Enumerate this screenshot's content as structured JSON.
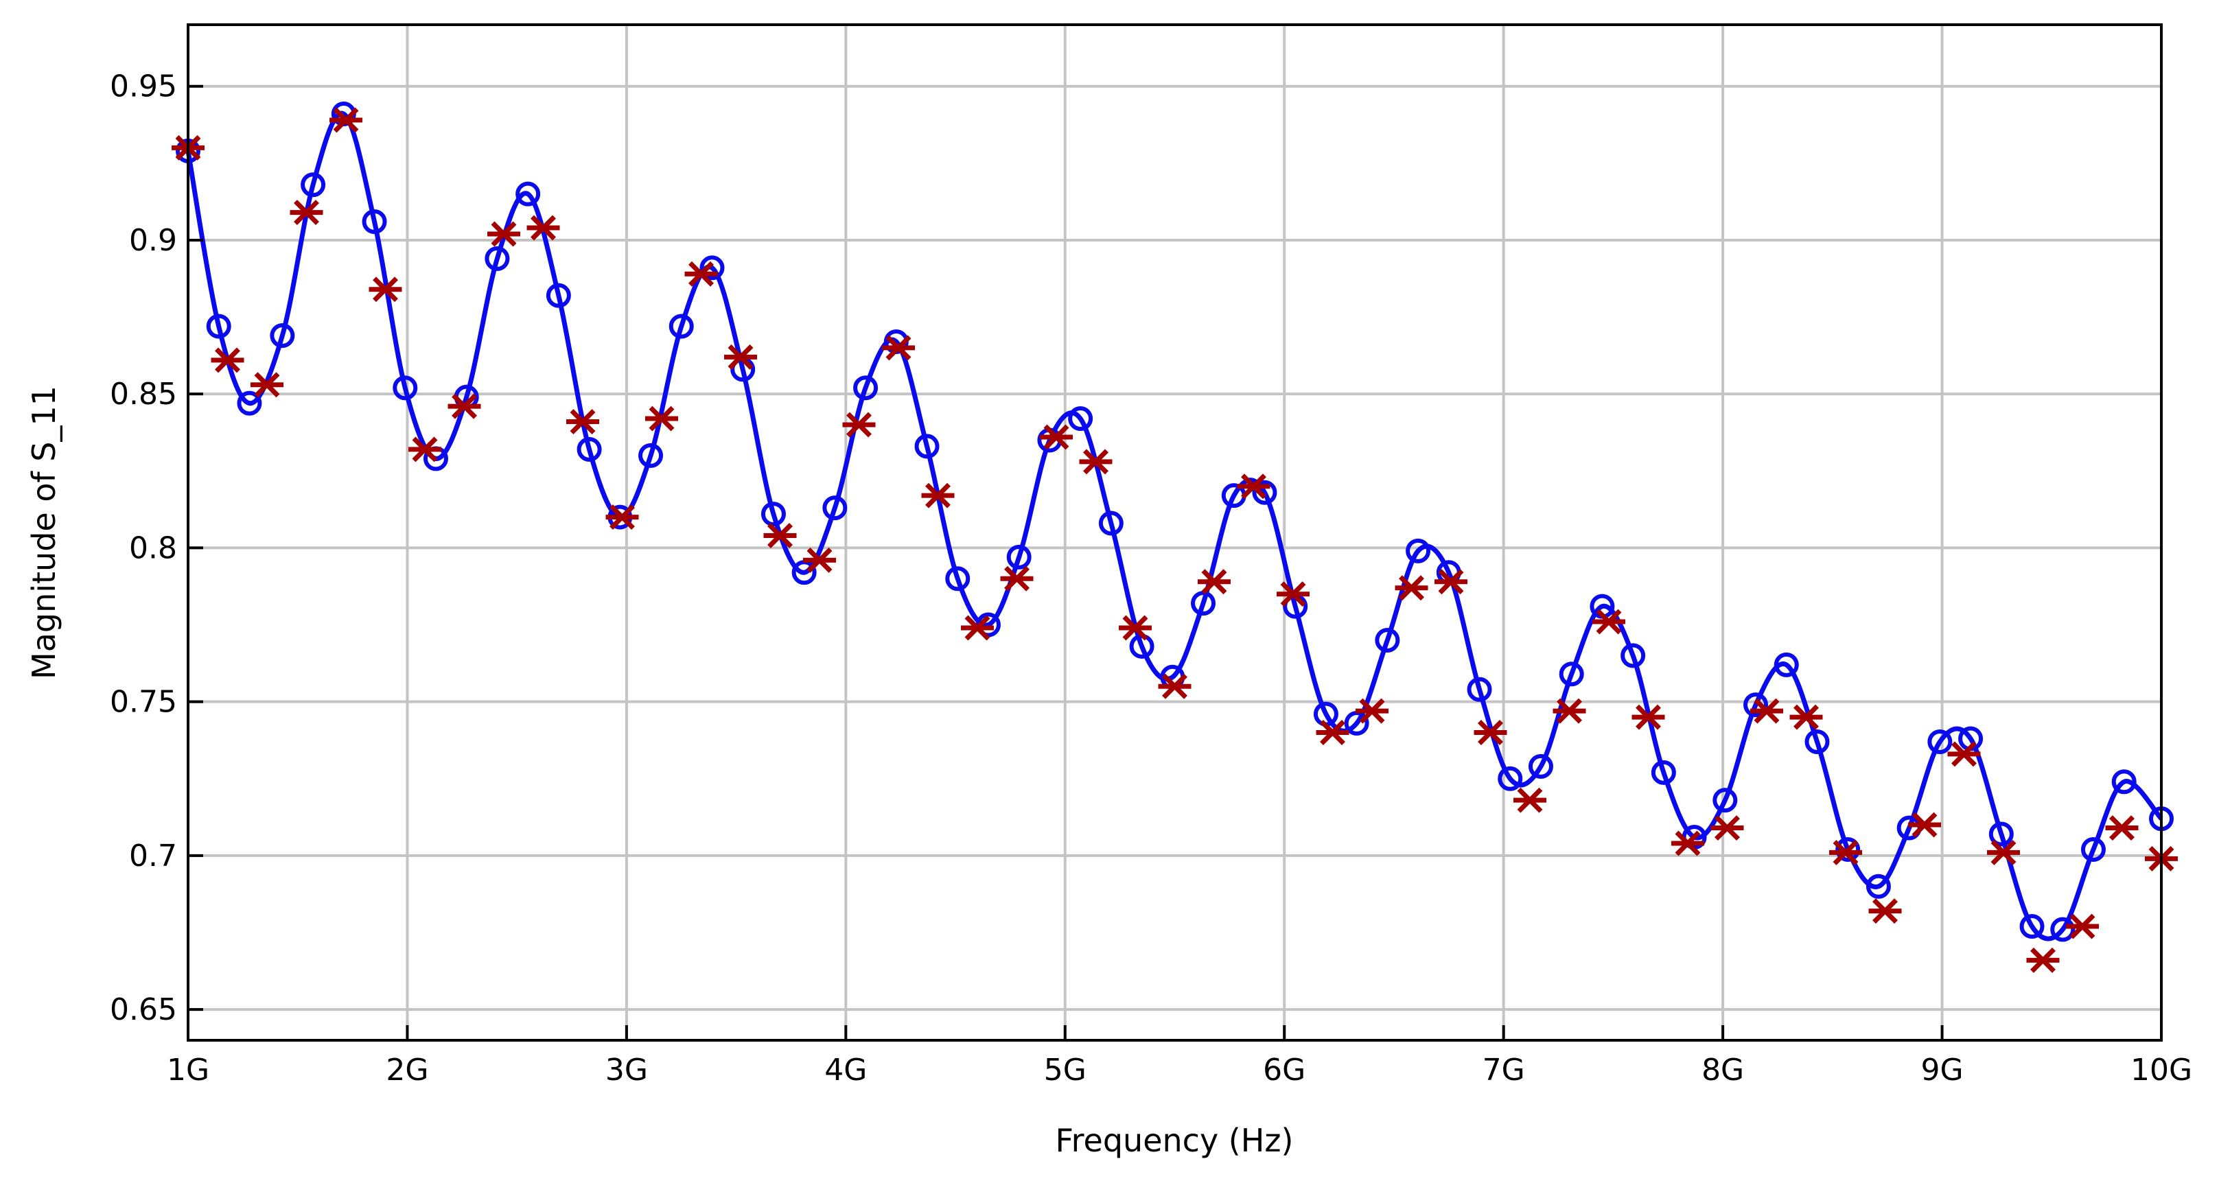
{
  "chart_data": {
    "type": "line",
    "title": "",
    "xlabel": "Frequency (Hz)",
    "ylabel": "Magnitude of S_11",
    "xlim": [
      1,
      10
    ],
    "ylim": [
      0.64,
      0.97
    ],
    "x_unit": "GHz",
    "x_ticks": [
      1,
      2,
      3,
      4,
      5,
      6,
      7,
      8,
      9,
      10
    ],
    "x_tick_labels": [
      "1G",
      "2G",
      "3G",
      "4G",
      "5G",
      "6G",
      "7G",
      "8G",
      "9G",
      "10G"
    ],
    "y_ticks": [
      0.65,
      0.7,
      0.75,
      0.8,
      0.85,
      0.9,
      0.95
    ],
    "y_tick_labels": [
      "0.65",
      "0.7",
      "0.75",
      "0.8",
      "0.85",
      "0.9",
      "0.95"
    ],
    "grid": true,
    "legend": "none",
    "series": [
      {
        "marker": "circle",
        "line": "solid",
        "color": "#0a0aee",
        "points": [
          [
            1.0,
            0.929
          ],
          [
            1.14,
            0.872
          ],
          [
            1.28,
            0.847
          ],
          [
            1.43,
            0.869
          ],
          [
            1.57,
            0.918
          ],
          [
            1.71,
            0.941
          ],
          [
            1.85,
            0.906
          ],
          [
            1.99,
            0.852
          ],
          [
            2.13,
            0.829
          ],
          [
            2.27,
            0.849
          ],
          [
            2.41,
            0.894
          ],
          [
            2.55,
            0.915
          ],
          [
            2.69,
            0.882
          ],
          [
            2.83,
            0.832
          ],
          [
            2.97,
            0.81
          ],
          [
            3.11,
            0.83
          ],
          [
            3.25,
            0.872
          ],
          [
            3.39,
            0.891
          ],
          [
            3.53,
            0.858
          ],
          [
            3.67,
            0.811
          ],
          [
            3.81,
            0.792
          ],
          [
            3.95,
            0.813
          ],
          [
            4.09,
            0.852
          ],
          [
            4.23,
            0.867
          ],
          [
            4.37,
            0.833
          ],
          [
            4.51,
            0.79
          ],
          [
            4.65,
            0.775
          ],
          [
            4.79,
            0.797
          ],
          [
            4.93,
            0.835
          ],
          [
            5.07,
            0.842
          ],
          [
            5.21,
            0.808
          ],
          [
            5.35,
            0.768
          ],
          [
            5.49,
            0.758
          ],
          [
            5.63,
            0.782
          ],
          [
            5.77,
            0.817
          ],
          [
            5.91,
            0.818
          ],
          [
            6.05,
            0.781
          ],
          [
            6.19,
            0.746
          ],
          [
            6.33,
            0.743
          ],
          [
            6.47,
            0.77
          ],
          [
            6.61,
            0.799
          ],
          [
            6.75,
            0.792
          ],
          [
            6.89,
            0.754
          ],
          [
            7.03,
            0.725
          ],
          [
            7.17,
            0.729
          ],
          [
            7.31,
            0.759
          ],
          [
            7.45,
            0.781
          ],
          [
            7.59,
            0.765
          ],
          [
            7.73,
            0.727
          ],
          [
            7.87,
            0.706
          ],
          [
            8.01,
            0.718
          ],
          [
            8.15,
            0.749
          ],
          [
            8.29,
            0.762
          ],
          [
            8.43,
            0.737
          ],
          [
            8.57,
            0.702
          ],
          [
            8.71,
            0.69
          ],
          [
            8.85,
            0.709
          ],
          [
            8.99,
            0.737
          ],
          [
            9.13,
            0.738
          ],
          [
            9.27,
            0.707
          ],
          [
            9.41,
            0.677
          ],
          [
            9.55,
            0.676
          ],
          [
            9.69,
            0.702
          ],
          [
            9.83,
            0.724
          ],
          [
            10.0,
            0.712
          ]
        ]
      },
      {
        "marker": "asterisk",
        "line": "none",
        "color": "#a50000",
        "points": [
          [
            1.0,
            0.93
          ],
          [
            1.18,
            0.861
          ],
          [
            1.36,
            0.853
          ],
          [
            1.54,
            0.909
          ],
          [
            1.72,
            0.939
          ],
          [
            1.9,
            0.884
          ],
          [
            2.08,
            0.832
          ],
          [
            2.26,
            0.846
          ],
          [
            2.44,
            0.902
          ],
          [
            2.62,
            0.904
          ],
          [
            2.8,
            0.841
          ],
          [
            2.98,
            0.81
          ],
          [
            3.16,
            0.842
          ],
          [
            3.34,
            0.889
          ],
          [
            3.52,
            0.862
          ],
          [
            3.7,
            0.804
          ],
          [
            3.88,
            0.796
          ],
          [
            4.06,
            0.84
          ],
          [
            4.24,
            0.865
          ],
          [
            4.42,
            0.817
          ],
          [
            4.6,
            0.774
          ],
          [
            4.78,
            0.79
          ],
          [
            4.96,
            0.836
          ],
          [
            5.14,
            0.828
          ],
          [
            5.32,
            0.774
          ],
          [
            5.5,
            0.755
          ],
          [
            5.68,
            0.789
          ],
          [
            5.86,
            0.82
          ],
          [
            6.04,
            0.785
          ],
          [
            6.22,
            0.74
          ],
          [
            6.4,
            0.747
          ],
          [
            6.58,
            0.787
          ],
          [
            6.76,
            0.789
          ],
          [
            6.94,
            0.74
          ],
          [
            7.12,
            0.718
          ],
          [
            7.3,
            0.747
          ],
          [
            7.48,
            0.776
          ],
          [
            7.66,
            0.745
          ],
          [
            7.84,
            0.704
          ],
          [
            8.02,
            0.709
          ],
          [
            8.2,
            0.747
          ],
          [
            8.38,
            0.745
          ],
          [
            8.56,
            0.701
          ],
          [
            8.74,
            0.682
          ],
          [
            8.92,
            0.71
          ],
          [
            9.1,
            0.733
          ],
          [
            9.28,
            0.701
          ],
          [
            9.46,
            0.666
          ],
          [
            9.64,
            0.677
          ],
          [
            9.82,
            0.709
          ],
          [
            10.0,
            0.699
          ]
        ]
      }
    ]
  }
}
